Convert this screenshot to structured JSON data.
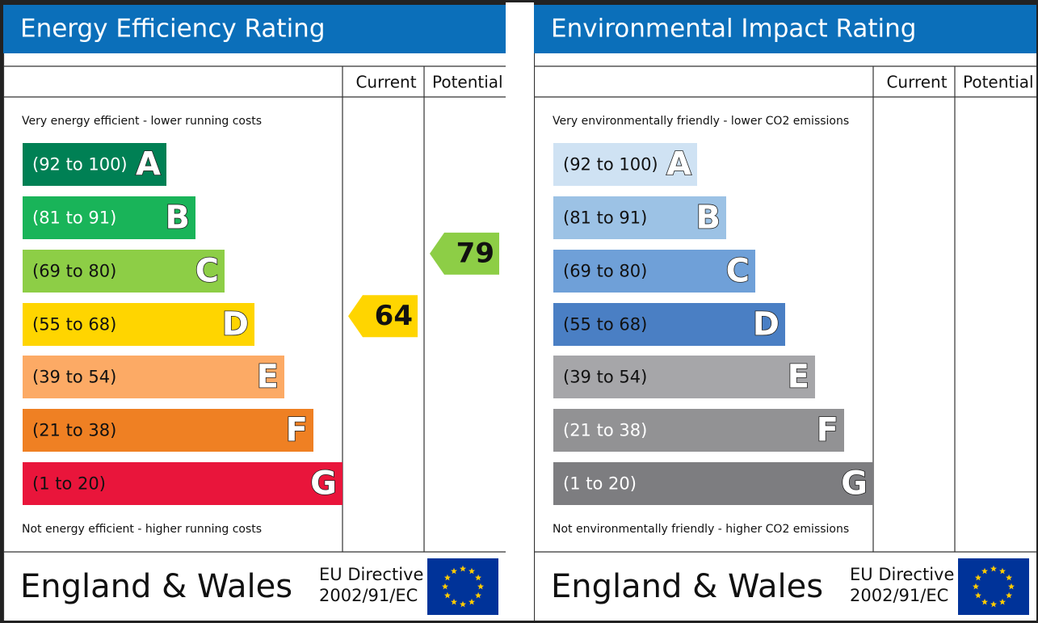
{
  "panels": [
    {
      "title": "Energy Efficiency Rating",
      "columns": [
        "Current",
        "Potential"
      ],
      "top_note": "Very energy efficient - lower running costs",
      "bottom_note": "Not energy efficient - higher running costs",
      "bands": [
        {
          "range": "(92 to 100)",
          "letter": "A",
          "color": "#008054",
          "text_color": "#ffffff"
        },
        {
          "range": "(81 to 91)",
          "letter": "B",
          "color": "#19b459",
          "text_color": "#ffffff"
        },
        {
          "range": "(69 to 80)",
          "letter": "C",
          "color": "#8dce46",
          "text_color": "#111111"
        },
        {
          "range": "(55 to 68)",
          "letter": "D",
          "color": "#ffd500",
          "text_color": "#111111"
        },
        {
          "range": "(39 to 54)",
          "letter": "E",
          "color": "#fcaa65",
          "text_color": "#111111"
        },
        {
          "range": "(21 to 38)",
          "letter": "F",
          "color": "#ef8023",
          "text_color": "#111111"
        },
        {
          "range": "(1 to 20)",
          "letter": "G",
          "color": "#e9153b",
          "text_color": "#111111"
        }
      ],
      "current": 64,
      "potential": 79,
      "footer": {
        "region": "England & Wales",
        "directive_line1": "EU Directive",
        "directive_line2": "2002/91/EC"
      }
    },
    {
      "title": "Environmental Impact Rating",
      "columns": [
        "Current",
        "Potential"
      ],
      "top_note": "Very environmentally friendly - lower CO2 emissions",
      "bottom_note": "Not environmentally friendly - higher CO2 emissions",
      "bands": [
        {
          "range": "(92 to 100)",
          "letter": "A",
          "color": "#cfe2f3",
          "text_color": "#111111"
        },
        {
          "range": "(81 to 91)",
          "letter": "B",
          "color": "#9cc2e5",
          "text_color": "#111111"
        },
        {
          "range": "(69 to 80)",
          "letter": "C",
          "color": "#6fa0d8",
          "text_color": "#111111"
        },
        {
          "range": "(55 to 68)",
          "letter": "D",
          "color": "#4a7fc4",
          "text_color": "#111111"
        },
        {
          "range": "(39 to 54)",
          "letter": "E",
          "color": "#a6a6a9",
          "text_color": "#111111"
        },
        {
          "range": "(21 to 38)",
          "letter": "F",
          "color": "#929294",
          "text_color": "#ffffff"
        },
        {
          "range": "(1 to 20)",
          "letter": "G",
          "color": "#7d7d80",
          "text_color": "#ffffff"
        }
      ],
      "footer": {
        "region": "England & Wales",
        "directive_line1": "EU Directive",
        "directive_line2": "2002/91/EC"
      }
    }
  ]
}
